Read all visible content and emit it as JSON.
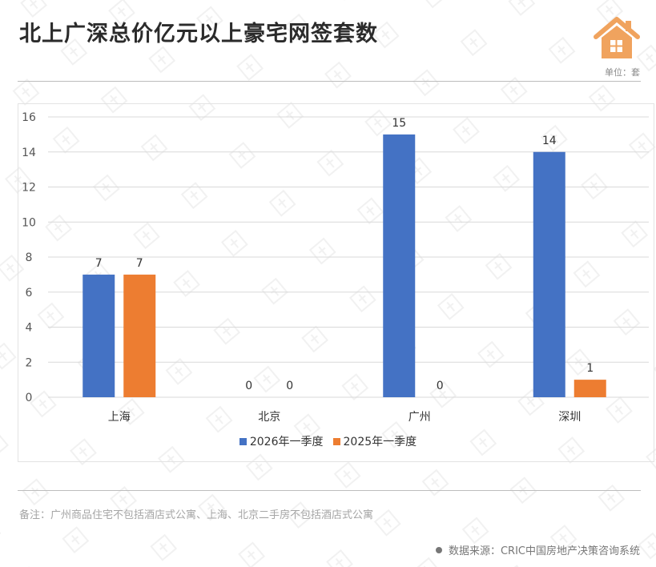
{
  "header": {
    "title": "北上广深总价亿元以上豪宅网签套数",
    "unit": "单位：套"
  },
  "chart_data": {
    "type": "bar",
    "categories": [
      "上海",
      "北京",
      "广州",
      "深圳"
    ],
    "series": [
      {
        "name": "2026年一季度",
        "values": [
          7,
          0,
          15,
          14
        ],
        "color": "#4472C4"
      },
      {
        "name": "2025年一季度",
        "values": [
          7,
          0,
          0,
          1
        ],
        "color": "#ED7D31"
      }
    ],
    "ylim": [
      0,
      16
    ],
    "yticks": [
      0,
      2,
      4,
      6,
      8,
      10,
      12,
      14,
      16
    ],
    "grid": true,
    "legend_position": "bottom"
  },
  "footer": {
    "note": "备注：广州商品住宅不包括酒店式公寓、上海、北京二手房不包括酒店式公寓",
    "source": "数据来源：CRIC中国房地产决策咨询系统"
  },
  "colors": {
    "house_icon": "#F0A35E",
    "grid": "#d9d9d9"
  }
}
